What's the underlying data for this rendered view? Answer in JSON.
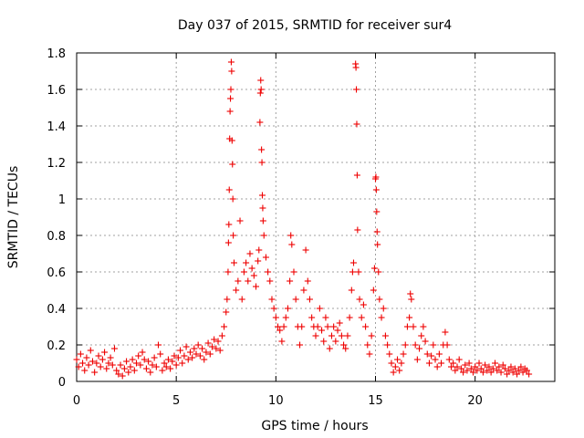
{
  "chart_data": {
    "type": "scatter",
    "title": "Day 037 of 2015, SRMTID for receiver sur4",
    "xlabel": "GPS time / hours",
    "ylabel": "SRMTID / TECUs",
    "xlim": [
      0,
      24
    ],
    "ylim": [
      0,
      1.8
    ],
    "xticks": [
      0,
      5,
      10,
      15,
      20
    ],
    "xtick_labels": [
      "0",
      "5",
      "10",
      "15",
      "20"
    ],
    "yticks": [
      0,
      0.2,
      0.4,
      0.6,
      0.8,
      1,
      1.2,
      1.4,
      1.6,
      1.8
    ],
    "ytick_labels": [
      "0",
      "0.2",
      "0.4",
      "0.6",
      "0.8",
      "1",
      "1.2",
      "1.4",
      "1.6",
      "1.8"
    ],
    "grid": true,
    "marker": "+",
    "marker_color": "#ee0000",
    "series": [
      {
        "name": "SRMTID",
        "points": [
          [
            0.0,
            0.12
          ],
          [
            0.1,
            0.08
          ],
          [
            0.2,
            0.15
          ],
          [
            0.3,
            0.1
          ],
          [
            0.4,
            0.06
          ],
          [
            0.5,
            0.13
          ],
          [
            0.6,
            0.09
          ],
          [
            0.7,
            0.17
          ],
          [
            0.8,
            0.11
          ],
          [
            0.9,
            0.05
          ],
          [
            1.0,
            0.1
          ],
          [
            1.1,
            0.14
          ],
          [
            1.2,
            0.08
          ],
          [
            1.3,
            0.12
          ],
          [
            1.4,
            0.16
          ],
          [
            1.5,
            0.07
          ],
          [
            1.6,
            0.1
          ],
          [
            1.7,
            0.13
          ],
          [
            1.8,
            0.09
          ],
          [
            1.9,
            0.18
          ],
          [
            2.0,
            0.06
          ],
          [
            2.1,
            0.04
          ],
          [
            2.2,
            0.09
          ],
          [
            2.3,
            0.03
          ],
          [
            2.4,
            0.07
          ],
          [
            2.5,
            0.11
          ],
          [
            2.6,
            0.05
          ],
          [
            2.7,
            0.08
          ],
          [
            2.8,
            0.12
          ],
          [
            2.9,
            0.06
          ],
          [
            3.0,
            0.1
          ],
          [
            3.1,
            0.14
          ],
          [
            3.2,
            0.09
          ],
          [
            3.3,
            0.16
          ],
          [
            3.4,
            0.12
          ],
          [
            3.5,
            0.07
          ],
          [
            3.6,
            0.11
          ],
          [
            3.7,
            0.05
          ],
          [
            3.8,
            0.09
          ],
          [
            3.9,
            0.13
          ],
          [
            4.0,
            0.08
          ],
          [
            4.1,
            0.2
          ],
          [
            4.2,
            0.15
          ],
          [
            4.3,
            0.06
          ],
          [
            4.4,
            0.1
          ],
          [
            4.5,
            0.08
          ],
          [
            4.6,
            0.12
          ],
          [
            4.7,
            0.07
          ],
          [
            4.8,
            0.11
          ],
          [
            4.9,
            0.14
          ],
          [
            5.0,
            0.09
          ],
          [
            5.1,
            0.13
          ],
          [
            5.2,
            0.17
          ],
          [
            5.3,
            0.1
          ],
          [
            5.4,
            0.14
          ],
          [
            5.5,
            0.19
          ],
          [
            5.6,
            0.12
          ],
          [
            5.7,
            0.16
          ],
          [
            5.8,
            0.13
          ],
          [
            5.9,
            0.18
          ],
          [
            6.0,
            0.15
          ],
          [
            6.1,
            0.2
          ],
          [
            6.2,
            0.14
          ],
          [
            6.3,
            0.18
          ],
          [
            6.4,
            0.12
          ],
          [
            6.5,
            0.16
          ],
          [
            6.6,
            0.21
          ],
          [
            6.7,
            0.15
          ],
          [
            6.8,
            0.19
          ],
          [
            6.9,
            0.23
          ],
          [
            7.0,
            0.18
          ],
          [
            7.1,
            0.22
          ],
          [
            7.2,
            0.17
          ],
          [
            7.3,
            0.25
          ],
          [
            7.4,
            0.3
          ],
          [
            7.5,
            0.38
          ],
          [
            7.55,
            0.45
          ],
          [
            7.6,
            0.6
          ],
          [
            7.62,
            0.76
          ],
          [
            7.64,
            0.86
          ],
          [
            7.66,
            1.05
          ],
          [
            7.68,
            1.33
          ],
          [
            7.7,
            1.48
          ],
          [
            7.72,
            1.55
          ],
          [
            7.74,
            1.6
          ],
          [
            7.76,
            1.75
          ],
          [
            7.78,
            1.7
          ],
          [
            7.8,
            1.32
          ],
          [
            7.82,
            1.19
          ],
          [
            7.84,
            1.0
          ],
          [
            7.86,
            0.8
          ],
          [
            7.9,
            0.65
          ],
          [
            8.0,
            0.5
          ],
          [
            8.1,
            0.55
          ],
          [
            8.2,
            0.88
          ],
          [
            8.3,
            0.45
          ],
          [
            8.4,
            0.6
          ],
          [
            8.5,
            0.65
          ],
          [
            8.6,
            0.55
          ],
          [
            8.7,
            0.7
          ],
          [
            8.8,
            0.62
          ],
          [
            8.9,
            0.58
          ],
          [
            9.0,
            0.52
          ],
          [
            9.1,
            0.66
          ],
          [
            9.15,
            0.72
          ],
          [
            9.2,
            1.42
          ],
          [
            9.22,
            1.58
          ],
          [
            9.24,
            1.65
          ],
          [
            9.26,
            1.6
          ],
          [
            9.28,
            1.27
          ],
          [
            9.3,
            1.2
          ],
          [
            9.32,
            1.02
          ],
          [
            9.34,
            0.95
          ],
          [
            9.36,
            0.88
          ],
          [
            9.4,
            0.8
          ],
          [
            9.5,
            0.68
          ],
          [
            9.6,
            0.6
          ],
          [
            9.7,
            0.55
          ],
          [
            9.8,
            0.45
          ],
          [
            9.9,
            0.4
          ],
          [
            10.0,
            0.35
          ],
          [
            10.1,
            0.3
          ],
          [
            10.2,
            0.28
          ],
          [
            10.3,
            0.22
          ],
          [
            10.4,
            0.3
          ],
          [
            10.5,
            0.35
          ],
          [
            10.6,
            0.4
          ],
          [
            10.7,
            0.55
          ],
          [
            10.75,
            0.8
          ],
          [
            10.8,
            0.75
          ],
          [
            10.9,
            0.6
          ],
          [
            11.0,
            0.45
          ],
          [
            11.1,
            0.3
          ],
          [
            11.2,
            0.2
          ],
          [
            11.3,
            0.3
          ],
          [
            11.4,
            0.5
          ],
          [
            11.5,
            0.72
          ],
          [
            11.6,
            0.55
          ],
          [
            11.7,
            0.45
          ],
          [
            11.8,
            0.35
          ],
          [
            11.9,
            0.3
          ],
          [
            12.0,
            0.25
          ],
          [
            12.1,
            0.3
          ],
          [
            12.2,
            0.4
          ],
          [
            12.3,
            0.28
          ],
          [
            12.4,
            0.22
          ],
          [
            12.5,
            0.35
          ],
          [
            12.6,
            0.3
          ],
          [
            12.7,
            0.18
          ],
          [
            12.8,
            0.25
          ],
          [
            12.9,
            0.3
          ],
          [
            13.0,
            0.22
          ],
          [
            13.1,
            0.28
          ],
          [
            13.2,
            0.32
          ],
          [
            13.3,
            0.25
          ],
          [
            13.4,
            0.2
          ],
          [
            13.5,
            0.18
          ],
          [
            13.6,
            0.25
          ],
          [
            13.7,
            0.35
          ],
          [
            13.8,
            0.5
          ],
          [
            13.85,
            0.6
          ],
          [
            13.9,
            0.65
          ],
          [
            14.0,
            1.74
          ],
          [
            14.02,
            1.72
          ],
          [
            14.04,
            1.6
          ],
          [
            14.06,
            1.41
          ],
          [
            14.08,
            1.13
          ],
          [
            14.1,
            0.83
          ],
          [
            14.15,
            0.6
          ],
          [
            14.2,
            0.45
          ],
          [
            14.3,
            0.35
          ],
          [
            14.4,
            0.42
          ],
          [
            14.5,
            0.3
          ],
          [
            14.6,
            0.2
          ],
          [
            14.7,
            0.15
          ],
          [
            14.8,
            0.25
          ],
          [
            14.9,
            0.5
          ],
          [
            14.95,
            0.62
          ],
          [
            15.0,
            1.11
          ],
          [
            15.02,
            1.12
          ],
          [
            15.04,
            1.05
          ],
          [
            15.06,
            0.93
          ],
          [
            15.08,
            0.82
          ],
          [
            15.1,
            0.75
          ],
          [
            15.15,
            0.6
          ],
          [
            15.2,
            0.45
          ],
          [
            15.3,
            0.35
          ],
          [
            15.4,
            0.4
          ],
          [
            15.5,
            0.25
          ],
          [
            15.6,
            0.2
          ],
          [
            15.7,
            0.15
          ],
          [
            15.8,
            0.1
          ],
          [
            15.9,
            0.05
          ],
          [
            16.0,
            0.08
          ],
          [
            16.1,
            0.12
          ],
          [
            16.2,
            0.06
          ],
          [
            16.3,
            0.1
          ],
          [
            16.4,
            0.15
          ],
          [
            16.5,
            0.2
          ],
          [
            16.6,
            0.3
          ],
          [
            16.7,
            0.35
          ],
          [
            16.75,
            0.48
          ],
          [
            16.8,
            0.45
          ],
          [
            16.9,
            0.3
          ],
          [
            17.0,
            0.2
          ],
          [
            17.1,
            0.12
          ],
          [
            17.2,
            0.18
          ],
          [
            17.3,
            0.25
          ],
          [
            17.4,
            0.3
          ],
          [
            17.5,
            0.22
          ],
          [
            17.6,
            0.15
          ],
          [
            17.7,
            0.1
          ],
          [
            17.8,
            0.14
          ],
          [
            17.9,
            0.2
          ],
          [
            18.0,
            0.12
          ],
          [
            18.1,
            0.08
          ],
          [
            18.2,
            0.15
          ],
          [
            18.3,
            0.1
          ],
          [
            18.4,
            0.2
          ],
          [
            18.5,
            0.27
          ],
          [
            18.6,
            0.2
          ],
          [
            18.7,
            0.12
          ],
          [
            18.8,
            0.08
          ],
          [
            18.9,
            0.1
          ],
          [
            19.0,
            0.06
          ],
          [
            19.1,
            0.08
          ],
          [
            19.2,
            0.12
          ],
          [
            19.3,
            0.07
          ],
          [
            19.4,
            0.05
          ],
          [
            19.5,
            0.09
          ],
          [
            19.6,
            0.06
          ],
          [
            19.7,
            0.1
          ],
          [
            19.8,
            0.07
          ],
          [
            19.9,
            0.05
          ],
          [
            20.0,
            0.08
          ],
          [
            20.1,
            0.06
          ],
          [
            20.2,
            0.1
          ],
          [
            20.3,
            0.07
          ],
          [
            20.4,
            0.05
          ],
          [
            20.5,
            0.09
          ],
          [
            20.6,
            0.06
          ],
          [
            20.7,
            0.08
          ],
          [
            20.8,
            0.05
          ],
          [
            20.9,
            0.07
          ],
          [
            21.0,
            0.1
          ],
          [
            21.1,
            0.06
          ],
          [
            21.2,
            0.08
          ],
          [
            21.3,
            0.05
          ],
          [
            21.4,
            0.09
          ],
          [
            21.5,
            0.07
          ],
          [
            21.6,
            0.04
          ],
          [
            21.7,
            0.06
          ],
          [
            21.8,
            0.08
          ],
          [
            21.9,
            0.05
          ],
          [
            22.0,
            0.07
          ],
          [
            22.1,
            0.04
          ],
          [
            22.2,
            0.06
          ],
          [
            22.3,
            0.08
          ],
          [
            22.4,
            0.05
          ],
          [
            22.5,
            0.07
          ],
          [
            22.6,
            0.06
          ],
          [
            22.7,
            0.04
          ]
        ]
      }
    ]
  }
}
